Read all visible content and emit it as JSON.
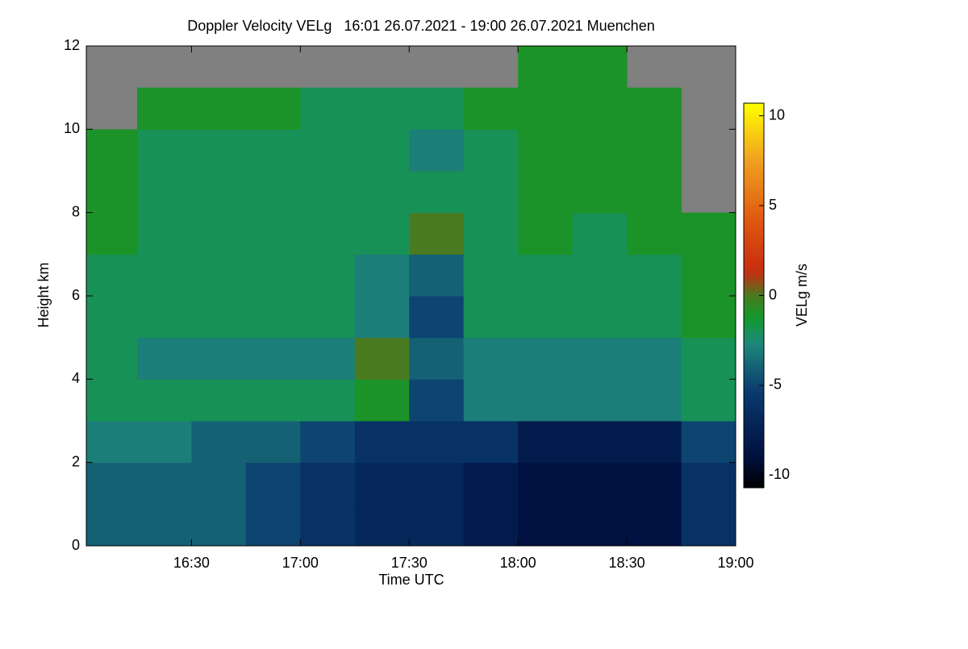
{
  "chart_data": {
    "type": "heatmap",
    "title": "Doppler Velocity VELg   16:01 26.07.2021 - 19:00 26.07.2021 Muenchen",
    "xlabel": "Time UTC",
    "ylabel": "Height km",
    "colorbar_label": "VELg m/s",
    "xlim": [
      961,
      1140
    ],
    "xticks": [
      {
        "value": 990,
        "label": "16:30"
      },
      {
        "value": 1020,
        "label": "17:00"
      },
      {
        "value": 1050,
        "label": "17:30"
      },
      {
        "value": 1080,
        "label": "18:00"
      },
      {
        "value": 1110,
        "label": "18:30"
      },
      {
        "value": 1140,
        "label": "19:00"
      }
    ],
    "ylim": [
      0,
      12
    ],
    "yticks": [
      0,
      2,
      4,
      6,
      8,
      10,
      12
    ],
    "zlim": [
      -10.7,
      10.7
    ],
    "zticks": [
      -10,
      -5,
      0,
      5,
      10
    ],
    "x_edges": [
      961,
      975,
      990,
      1005,
      1020,
      1035,
      1050,
      1065,
      1080,
      1095,
      1110,
      1125,
      1140
    ],
    "y_edges": [
      0,
      1,
      2,
      3,
      4,
      5,
      6,
      7,
      8,
      9,
      10,
      11,
      12
    ],
    "z": [
      [
        -4,
        -4,
        -4,
        -5,
        -6,
        -7,
        -7,
        -8,
        -9,
        -9,
        -9,
        -6
      ],
      [
        -4,
        -4,
        -4,
        -5,
        -6,
        -7,
        -7,
        -8,
        -9,
        -9,
        -9,
        -6
      ],
      [
        -3,
        -3,
        -4,
        -4,
        -5,
        -6,
        -6,
        -6,
        -8,
        -8,
        -8,
        -5
      ],
      [
        -2,
        -2,
        -2,
        -2,
        -2,
        -1,
        -5,
        -3,
        -3,
        -3,
        -3,
        -2
      ],
      [
        -2,
        -3,
        -3,
        -3,
        -3,
        0,
        -4,
        -3,
        -3,
        -3,
        -3,
        -2
      ],
      [
        -2,
        -2,
        -2,
        -2,
        -2,
        -3,
        -5,
        -2,
        -2,
        -2,
        -2,
        -1
      ],
      [
        -2,
        -2,
        -2,
        -2,
        -2,
        -3,
        -4,
        -2,
        -2,
        -2,
        -2,
        -1
      ],
      [
        -1,
        -2,
        -2,
        -2,
        -2,
        -2,
        0,
        -2,
        -1,
        -2,
        -1,
        -1
      ],
      [
        -1,
        -2,
        -2,
        -2,
        -2,
        -2,
        -2,
        -2,
        -1,
        -1,
        -1,
        null
      ],
      [
        -1,
        -2,
        -2,
        -2,
        -2,
        -2,
        -3,
        -2,
        -1,
        -1,
        -1,
        null
      ],
      [
        null,
        -1,
        -1,
        -1,
        -2,
        -2,
        -2,
        -1,
        -1,
        -1,
        -1,
        null
      ],
      [
        null,
        null,
        null,
        null,
        null,
        null,
        null,
        null,
        -1,
        -1,
        null,
        null
      ]
    ],
    "missing_color": "#808080"
  }
}
